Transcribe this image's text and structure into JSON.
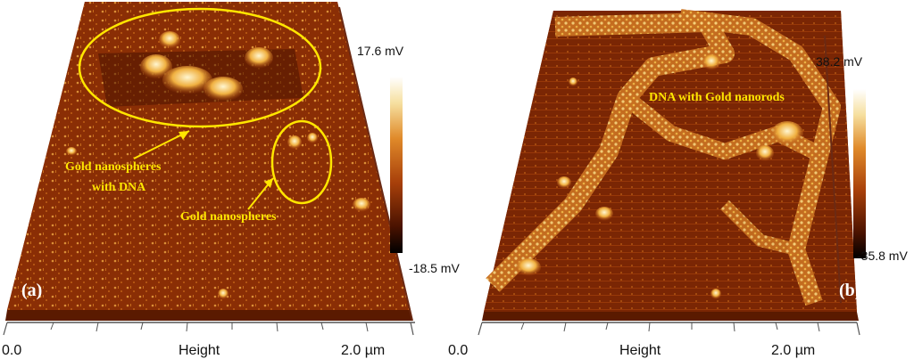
{
  "panel_a": {
    "panel_label": "(a)",
    "colorbar_max": "17.6 mV",
    "colorbar_min": "-18.5 mV",
    "annotation_1": "Gold nanospheres",
    "annotation_1b": "with DNA",
    "annotation_2": "Gold nanospheres",
    "axis_start": "0.0",
    "axis_label": "Height",
    "axis_end": "2.0 µm"
  },
  "panel_b": {
    "panel_label": "(b)",
    "colorbar_max": "38.2 mV",
    "colorbar_min": "-35.8 mV",
    "annotation_1": "DNA with Gold nanorods",
    "axis_start": "0.0",
    "axis_label": "Height",
    "axis_end": "2.0 µm"
  },
  "colors": {
    "surface_dark": "#5a1a00",
    "surface_mid": "#a8400a",
    "surface_light": "#f6d27a",
    "annotation_yellow": "#ffe600"
  }
}
